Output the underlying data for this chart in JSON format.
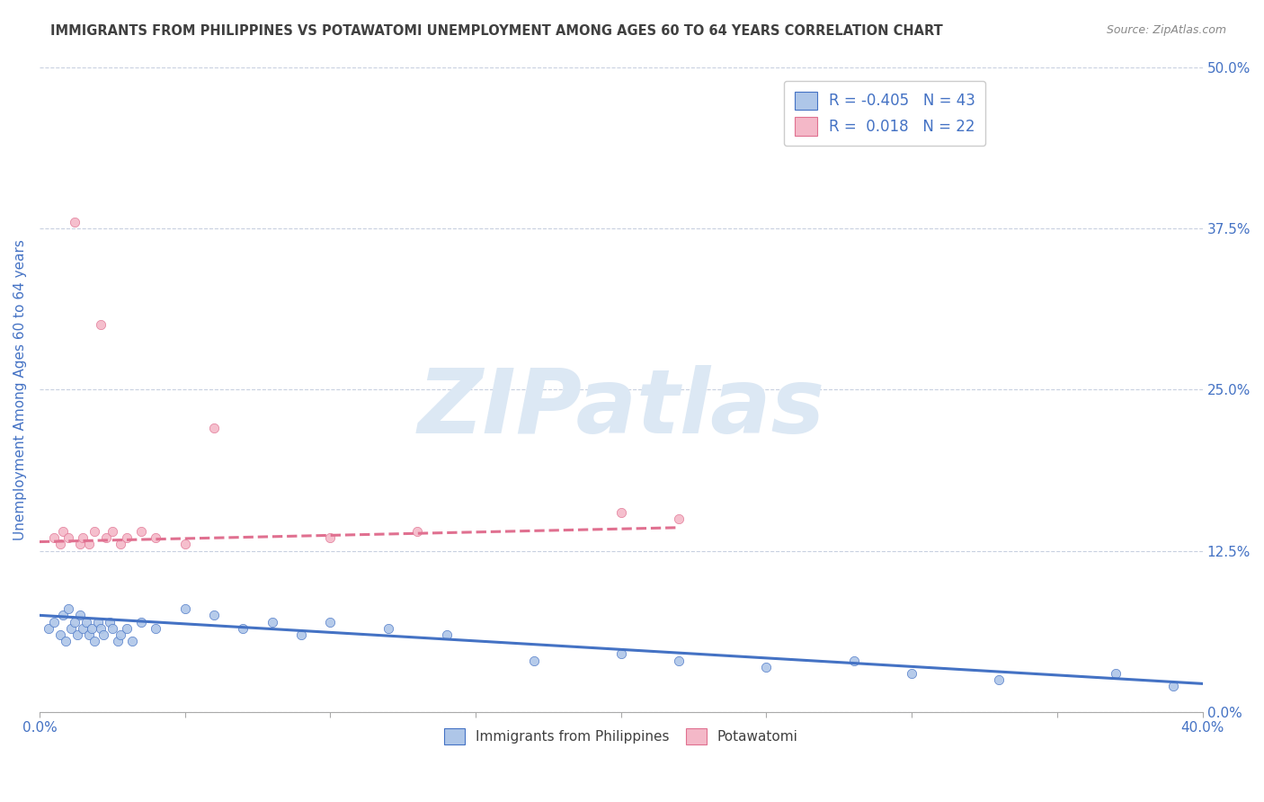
{
  "title": "IMMIGRANTS FROM PHILIPPINES VS POTAWATOMI UNEMPLOYMENT AMONG AGES 60 TO 64 YEARS CORRELATION CHART",
  "source": "Source: ZipAtlas.com",
  "ylabel": "Unemployment Among Ages 60 to 64 years",
  "xlim": [
    0.0,
    0.4
  ],
  "ylim": [
    0.0,
    0.5
  ],
  "xticks": [
    0.0,
    0.05,
    0.1,
    0.15,
    0.2,
    0.25,
    0.3,
    0.35,
    0.4
  ],
  "xtick_labels": [
    "0.0%",
    "",
    "",
    "",
    "",
    "",
    "",
    "",
    "40.0%"
  ],
  "ytick_labels_right": [
    "0.0%",
    "12.5%",
    "25.0%",
    "37.5%",
    "50.0%"
  ],
  "yticks_right": [
    0.0,
    0.125,
    0.25,
    0.375,
    0.5
  ],
  "legend_r1": "-0.405",
  "legend_n1": "43",
  "legend_r2": "0.018",
  "legend_n2": "22",
  "blue_color": "#aec6e8",
  "blue_line_color": "#4472c4",
  "pink_color": "#f4b8c8",
  "pink_line_color": "#e07090",
  "title_color": "#404040",
  "axis_label_color": "#4472c4",
  "grid_color": "#c8d0e0",
  "watermark_text": "ZIPatlas",
  "watermark_color": "#dce8f4",
  "blue_scatter_x": [
    0.003,
    0.005,
    0.007,
    0.008,
    0.009,
    0.01,
    0.011,
    0.012,
    0.013,
    0.014,
    0.015,
    0.016,
    0.017,
    0.018,
    0.019,
    0.02,
    0.021,
    0.022,
    0.024,
    0.025,
    0.027,
    0.028,
    0.03,
    0.032,
    0.035,
    0.04,
    0.05,
    0.06,
    0.07,
    0.08,
    0.09,
    0.1,
    0.12,
    0.14,
    0.17,
    0.2,
    0.22,
    0.25,
    0.28,
    0.3,
    0.33,
    0.37,
    0.39
  ],
  "blue_scatter_y": [
    0.065,
    0.07,
    0.06,
    0.075,
    0.055,
    0.08,
    0.065,
    0.07,
    0.06,
    0.075,
    0.065,
    0.07,
    0.06,
    0.065,
    0.055,
    0.07,
    0.065,
    0.06,
    0.07,
    0.065,
    0.055,
    0.06,
    0.065,
    0.055,
    0.07,
    0.065,
    0.08,
    0.075,
    0.065,
    0.07,
    0.06,
    0.07,
    0.065,
    0.06,
    0.04,
    0.045,
    0.04,
    0.035,
    0.04,
    0.03,
    0.025,
    0.03,
    0.02
  ],
  "blue_line_x": [
    0.0,
    0.4
  ],
  "blue_line_y": [
    0.075,
    0.022
  ],
  "pink_scatter_x": [
    0.005,
    0.007,
    0.008,
    0.01,
    0.012,
    0.014,
    0.015,
    0.017,
    0.019,
    0.021,
    0.023,
    0.025,
    0.028,
    0.03,
    0.035,
    0.04,
    0.05,
    0.06,
    0.1,
    0.13,
    0.2,
    0.22
  ],
  "pink_scatter_y": [
    0.135,
    0.13,
    0.14,
    0.135,
    0.38,
    0.13,
    0.135,
    0.13,
    0.14,
    0.3,
    0.135,
    0.14,
    0.13,
    0.135,
    0.14,
    0.135,
    0.13,
    0.22,
    0.135,
    0.14,
    0.155,
    0.15
  ],
  "pink_line_x": [
    0.0,
    0.22
  ],
  "pink_line_y": [
    0.132,
    0.143
  ]
}
